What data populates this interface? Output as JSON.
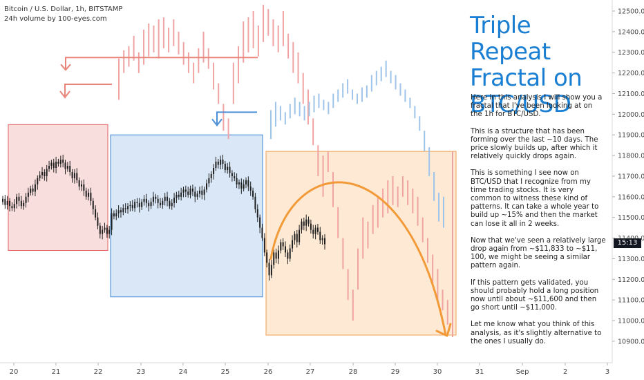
{
  "header": {
    "symbol_line": "Bitcoin / U.S. Dollar, 1h, BITSTAMP",
    "indicator_line": "24h volume by 100-eyes.com"
  },
  "title_lines": [
    "Triple Repeat",
    "Fractal on",
    "BTC/USD"
  ],
  "notes": [
    "Here in this analysis I will show you a fractal that I've been looking at on the 1h for BTC/USD.",
    "This is a structure that has been forming over the last ~10 days. The price slowly builds up, after which it relatively quickly drops again.",
    "This is something I see now on BTC/USD that I recognize from my time trading stocks. It is very common to witness these kind of patterns. It can take a whole year to build up ~15% and then the market can lose it all in 2 weeks.",
    "Now that we've seen a relatively large drop again from ~$11,833 to ~$11, 100, we might be seeing a similar pattern again.",
    "If this pattern gets validated, you should probably hold a long position now until about ~$11,600 and then go short until ~$11,000.",
    "Let me know what you think of this analysis, as it's slightly alternative to the ones I usually do."
  ],
  "price_badge": "15:13",
  "colors": {
    "candles": "#1e1e1e",
    "ghost_red": "#f0a3a3",
    "ghost_blue": "#9ec4ea",
    "red_box_fill": "#f9dede",
    "red_box_stroke": "#e06060",
    "blue_box_fill": "#d9e7f7",
    "blue_box_stroke": "#3d85d6",
    "orange_box_fill": "#fde9d4",
    "orange_box_stroke": "#f0a050",
    "arc": "#f29a38",
    "arrow_red": "#e88478",
    "arrow_blue": "#4a8fd8",
    "title": "#1a7fd3"
  },
  "chart_data": {
    "type": "candlestick",
    "y_axis": {
      "min": 10850,
      "max": 12550,
      "ticks": [
        12500,
        12400,
        12300,
        12200,
        12100,
        12000,
        11900,
        11800,
        11700,
        11600,
        11500,
        11400,
        11300,
        11200,
        11100,
        11000,
        10900
      ],
      "tick_labels": [
        "12500.00",
        "12400.00",
        "12300.00",
        "12200.00",
        "12100.00",
        "12000.00",
        "11900.00",
        "11800.00",
        "11700.00",
        "11600.00",
        "11500.00",
        "11400.00",
        "11300.00",
        "11200.00",
        "11100.00",
        "11000.00",
        "10900.00"
      ]
    },
    "x_axis": {
      "labels": [
        "20",
        "21",
        "22",
        "23",
        "24",
        "25",
        "26",
        "27",
        "28",
        "29",
        "30",
        "31",
        "Sep",
        "2",
        "3"
      ]
    },
    "candles": [
      [
        11575,
        11590
      ],
      [
        11590,
        11560
      ],
      [
        11560,
        11580
      ],
      [
        11580,
        11555
      ],
      [
        11555,
        11545
      ],
      [
        11545,
        11565
      ],
      [
        11565,
        11600
      ],
      [
        11600,
        11580
      ],
      [
        11580,
        11555
      ],
      [
        11555,
        11570
      ],
      [
        11570,
        11600
      ],
      [
        11600,
        11620
      ],
      [
        11620,
        11640
      ],
      [
        11640,
        11625
      ],
      [
        11625,
        11660
      ],
      [
        11660,
        11690
      ],
      [
        11690,
        11705
      ],
      [
        11705,
        11720
      ],
      [
        11720,
        11700
      ],
      [
        11700,
        11735
      ],
      [
        11735,
        11750
      ],
      [
        11750,
        11765
      ],
      [
        11765,
        11740
      ],
      [
        11740,
        11770
      ],
      [
        11770,
        11760
      ],
      [
        11760,
        11780
      ],
      [
        11780,
        11765
      ],
      [
        11765,
        11735
      ],
      [
        11735,
        11750
      ],
      [
        11750,
        11720
      ],
      [
        11720,
        11690
      ],
      [
        11690,
        11715
      ],
      [
        11715,
        11680
      ],
      [
        11680,
        11650
      ],
      [
        11650,
        11660
      ],
      [
        11660,
        11630
      ],
      [
        11630,
        11600
      ],
      [
        11600,
        11620
      ],
      [
        11620,
        11580
      ],
      [
        11580,
        11540
      ],
      [
        11540,
        11500
      ],
      [
        11500,
        11460
      ],
      [
        11460,
        11420
      ],
      [
        11420,
        11440
      ],
      [
        11440,
        11450
      ],
      [
        11450,
        11420
      ],
      [
        11420,
        11440
      ],
      [
        11440,
        11520
      ],
      [
        11520,
        11505
      ],
      [
        11505,
        11520
      ],
      [
        11520,
        11535
      ],
      [
        11535,
        11525
      ],
      [
        11525,
        11545
      ],
      [
        11545,
        11540
      ],
      [
        11540,
        11555
      ],
      [
        11555,
        11560
      ],
      [
        11560,
        11545
      ],
      [
        11545,
        11575
      ],
      [
        11575,
        11570
      ],
      [
        11570,
        11550
      ],
      [
        11550,
        11575
      ],
      [
        11575,
        11590
      ],
      [
        11590,
        11570
      ],
      [
        11570,
        11555
      ],
      [
        11555,
        11575
      ],
      [
        11575,
        11600
      ],
      [
        11600,
        11590
      ],
      [
        11590,
        11570
      ],
      [
        11570,
        11560
      ],
      [
        11560,
        11580
      ],
      [
        11580,
        11600
      ],
      [
        11600,
        11580
      ],
      [
        11580,
        11555
      ],
      [
        11555,
        11570
      ],
      [
        11570,
        11595
      ],
      [
        11595,
        11610
      ],
      [
        11610,
        11600
      ],
      [
        11600,
        11620
      ],
      [
        11620,
        11635
      ],
      [
        11635,
        11625
      ],
      [
        11625,
        11610
      ],
      [
        11610,
        11640
      ],
      [
        11640,
        11625
      ],
      [
        11625,
        11600
      ],
      [
        11600,
        11615
      ],
      [
        11615,
        11630
      ],
      [
        11630,
        11610
      ],
      [
        11610,
        11635
      ],
      [
        11635,
        11665
      ],
      [
        11665,
        11690
      ],
      [
        11690,
        11710
      ],
      [
        11710,
        11740
      ],
      [
        11740,
        11770
      ],
      [
        11770,
        11755
      ],
      [
        11755,
        11780
      ],
      [
        11780,
        11760
      ],
      [
        11760,
        11730
      ],
      [
        11730,
        11745
      ],
      [
        11745,
        11715
      ],
      [
        11715,
        11700
      ],
      [
        11700,
        11690
      ],
      [
        11690,
        11660
      ],
      [
        11660,
        11670
      ],
      [
        11670,
        11640
      ],
      [
        11640,
        11660
      ],
      [
        11660,
        11680
      ],
      [
        11680,
        11650
      ],
      [
        11650,
        11630
      ],
      [
        11630,
        11600
      ],
      [
        11600,
        11540
      ],
      [
        11540,
        11500
      ],
      [
        11500,
        11450
      ],
      [
        11450,
        11400
      ],
      [
        11400,
        11330
      ],
      [
        11330,
        11280
      ],
      [
        11280,
        11220
      ],
      [
        11220,
        11270
      ],
      [
        11270,
        11330
      ],
      [
        11330,
        11300
      ],
      [
        11300,
        11340
      ],
      [
        11340,
        11380
      ],
      [
        11380,
        11360
      ],
      [
        11360,
        11330
      ],
      [
        11330,
        11300
      ],
      [
        11300,
        11350
      ],
      [
        11350,
        11390
      ],
      [
        11390,
        11420
      ],
      [
        11420,
        11380
      ],
      [
        11380,
        11440
      ],
      [
        11440,
        11480
      ],
      [
        11480,
        11460
      ],
      [
        11460,
        11490
      ],
      [
        11490,
        11470
      ],
      [
        11470,
        11440
      ],
      [
        11440,
        11420
      ],
      [
        11420,
        11450
      ],
      [
        11450,
        11430
      ],
      [
        11430,
        11390
      ],
      [
        11390,
        11400
      ],
      [
        11400,
        11370
      ]
    ],
    "ghost_red_bars": [
      [
        12070,
        12270
      ],
      [
        12200,
        12310
      ],
      [
        12230,
        12330
      ],
      [
        12260,
        12380
      ],
      [
        12200,
        12300
      ],
      [
        12240,
        12410
      ],
      [
        12280,
        12440
      ],
      [
        12300,
        12430
      ],
      [
        12270,
        12460
      ],
      [
        12320,
        12470
      ],
      [
        12300,
        12420
      ],
      [
        12330,
        12460
      ],
      [
        12290,
        12400
      ],
      [
        12240,
        12350
      ],
      [
        12200,
        12300
      ],
      [
        12150,
        12250
      ],
      [
        12200,
        12320
      ],
      [
        12250,
        12400
      ],
      [
        12220,
        12320
      ],
      [
        12120,
        12250
      ],
      [
        12050,
        12150
      ],
      [
        11920,
        12050
      ],
      [
        11880,
        11980
      ],
      [
        12050,
        12250
      ],
      [
        12150,
        12330
      ],
      [
        12250,
        12450
      ],
      [
        12300,
        12470
      ],
      [
        12320,
        12500
      ],
      [
        12280,
        12430
      ],
      [
        12350,
        12530
      ],
      [
        12380,
        12510
      ],
      [
        12330,
        12460
      ],
      [
        12300,
        12430
      ],
      [
        12330,
        12500
      ],
      [
        12270,
        12390
      ],
      [
        12200,
        12350
      ],
      [
        12150,
        12300
      ],
      [
        12050,
        12200
      ],
      [
        11950,
        12120
      ],
      [
        11850,
        11980
      ],
      [
        11700,
        11850
      ],
      [
        11600,
        11800
      ],
      [
        11720,
        11820
      ],
      [
        11550,
        11720
      ],
      [
        11400,
        11550
      ],
      [
        11250,
        11400
      ],
      [
        11100,
        11250
      ],
      [
        11000,
        11150
      ],
      [
        11150,
        11350
      ],
      [
        11300,
        11500
      ],
      [
        11350,
        11480
      ],
      [
        11420,
        11560
      ],
      [
        11450,
        11600
      ],
      [
        11500,
        11640
      ],
      [
        11520,
        11680
      ],
      [
        11560,
        11700
      ],
      [
        11550,
        11650
      ],
      [
        11600,
        11700
      ],
      [
        11560,
        11680
      ],
      [
        11520,
        11640
      ],
      [
        11460,
        11600
      ],
      [
        11380,
        11500
      ],
      [
        11280,
        11400
      ],
      [
        11180,
        11320
      ],
      [
        11100,
        11250
      ],
      [
        11050,
        11150
      ],
      [
        10980,
        11100
      ],
      [
        10920,
        11820
      ]
    ],
    "ghost_blue_bars": [
      [
        11880,
        12020
      ],
      [
        11940,
        12060
      ],
      [
        11970,
        12040
      ],
      [
        11950,
        12010
      ],
      [
        11980,
        12050
      ],
      [
        12000,
        12080
      ],
      [
        11990,
        12060
      ],
      [
        11970,
        12040
      ],
      [
        11990,
        12060
      ],
      [
        12010,
        12090
      ],
      [
        12030,
        12100
      ],
      [
        12020,
        12070
      ],
      [
        12000,
        12060
      ],
      [
        12030,
        12100
      ],
      [
        12060,
        12120
      ],
      [
        12080,
        12150
      ],
      [
        12100,
        12170
      ],
      [
        12070,
        12120
      ],
      [
        12050,
        12100
      ],
      [
        12060,
        12130
      ],
      [
        12080,
        12140
      ],
      [
        12110,
        12190
      ],
      [
        12140,
        12210
      ],
      [
        12160,
        12230
      ],
      [
        12180,
        12260
      ],
      [
        12150,
        12210
      ],
      [
        12120,
        12190
      ],
      [
        12090,
        12150
      ],
      [
        12060,
        12120
      ],
      [
        12030,
        12080
      ],
      [
        11980,
        12040
      ],
      [
        11920,
        11990
      ],
      [
        11820,
        11920
      ],
      [
        11700,
        11840
      ],
      [
        11580,
        11720
      ],
      [
        11480,
        11620
      ],
      [
        11450,
        11600
      ]
    ],
    "zones": [
      {
        "color": "red",
        "price_top": 11950,
        "price_bottom": 11340
      },
      {
        "color": "blue",
        "price_top": 11900,
        "price_bottom": 11115
      },
      {
        "color": "orange",
        "price_top": 11820,
        "price_bottom": 10930
      }
    ],
    "arc_forecast": {
      "start": 11300,
      "peak": 11665,
      "end": 10930
    },
    "horizontal_levels": [
      {
        "color": "red",
        "price": 12275
      },
      {
        "color": "red",
        "price": 12145
      },
      {
        "color": "blue",
        "price": 12010
      }
    ]
  }
}
